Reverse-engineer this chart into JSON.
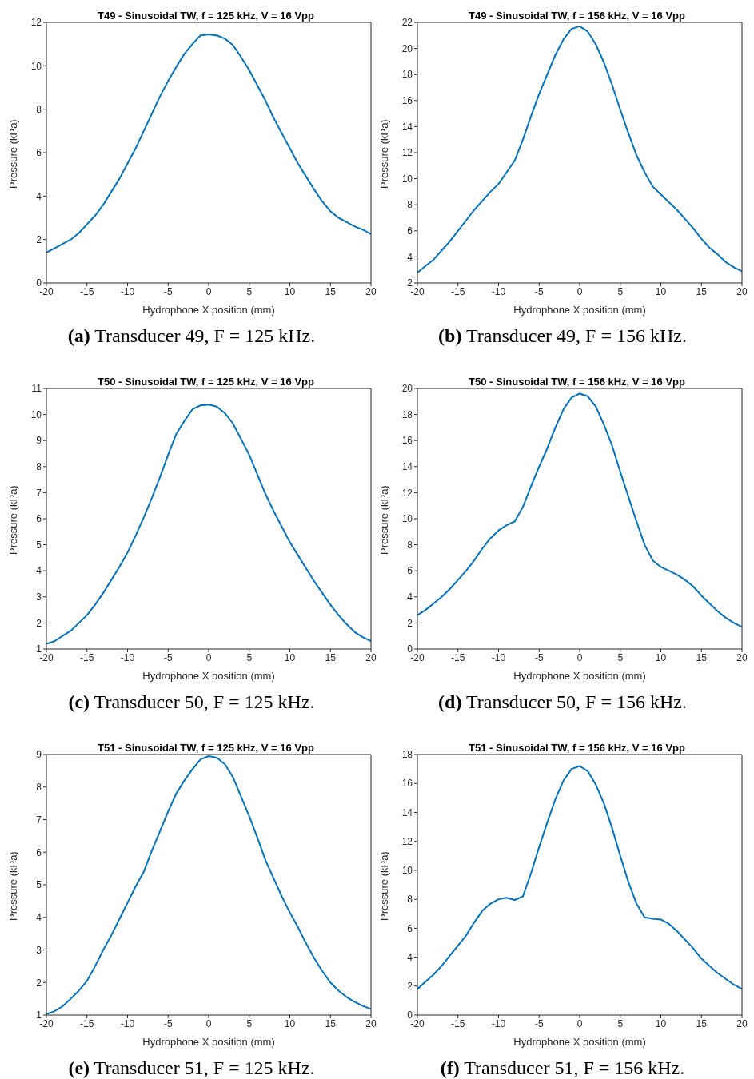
{
  "chart_data": [
    {
      "type": "line",
      "title": "T49 - Sinusoidal TW, f = 125 kHz, V = 16 Vpp",
      "xlabel": "Hydrophone X position (mm)",
      "ylabel": "Pressure (kPa)",
      "annotations": [
        "(a) Transducer 49, F = 125 kHz."
      ],
      "color": "#0072bd",
      "xlim": [
        -20,
        20
      ],
      "xticks": [
        -20,
        -15,
        -10,
        -5,
        0,
        5,
        10,
        15,
        20
      ],
      "ylim": [
        0,
        12
      ],
      "yticks": [
        0,
        2,
        4,
        6,
        8,
        10,
        12
      ],
      "x": [
        -20,
        -19,
        -18,
        -17,
        -16,
        -15,
        -14,
        -13,
        -12,
        -11,
        -10,
        -9,
        -8,
        -7,
        -6,
        -5,
        -4,
        -3,
        -2,
        -1,
        0,
        1,
        2,
        3,
        4,
        5,
        6,
        7,
        8,
        9,
        10,
        11,
        12,
        13,
        14,
        15,
        16,
        17,
        18,
        19,
        20
      ],
      "values": [
        1.4,
        1.6,
        1.8,
        2.0,
        2.3,
        2.7,
        3.1,
        3.6,
        4.2,
        4.8,
        5.5,
        6.2,
        7.0,
        7.8,
        8.6,
        9.3,
        9.95,
        10.55,
        11.0,
        11.4,
        11.45,
        11.4,
        11.25,
        10.95,
        10.4,
        9.8,
        9.1,
        8.4,
        7.6,
        6.9,
        6.2,
        5.5,
        4.9,
        4.3,
        3.75,
        3.3,
        3.0,
        2.8,
        2.6,
        2.45,
        2.25
      ]
    },
    {
      "type": "line",
      "title": "T49 - Sinusoidal TW, f = 156 kHz, V = 16 Vpp",
      "xlabel": "Hydrophone X position (mm)",
      "ylabel": "Pressure (kPa)",
      "annotations": [
        "(b) Transducer 49, F = 156 kHz."
      ],
      "color": "#0072bd",
      "xlim": [
        -20,
        20
      ],
      "xticks": [
        -20,
        -15,
        -10,
        -5,
        0,
        5,
        10,
        15,
        20
      ],
      "ylim": [
        2,
        22
      ],
      "yticks": [
        2,
        4,
        6,
        8,
        10,
        12,
        14,
        16,
        18,
        20,
        22
      ],
      "x": [
        -20,
        -19,
        -18,
        -17,
        -16,
        -15,
        -14,
        -13,
        -12,
        -11,
        -10,
        -9,
        -8,
        -7,
        -6,
        -5,
        -4,
        -3,
        -2,
        -1,
        0,
        1,
        2,
        3,
        4,
        5,
        6,
        7,
        8,
        9,
        10,
        11,
        12,
        13,
        14,
        15,
        16,
        17,
        18,
        19,
        20
      ],
      "values": [
        2.8,
        3.3,
        3.8,
        4.5,
        5.2,
        6.0,
        6.8,
        7.6,
        8.3,
        9.0,
        9.6,
        10.5,
        11.4,
        13.0,
        14.8,
        16.5,
        18.0,
        19.5,
        20.7,
        21.5,
        21.7,
        21.3,
        20.3,
        18.9,
        17.2,
        15.3,
        13.5,
        11.8,
        10.5,
        9.4,
        8.8,
        8.2,
        7.6,
        6.9,
        6.2,
        5.4,
        4.7,
        4.2,
        3.6,
        3.2,
        2.9
      ]
    },
    {
      "type": "line",
      "title": "T50 - Sinusoidal TW, f = 125 kHz, V = 16 Vpp",
      "xlabel": "Hydrophone X position (mm)",
      "ylabel": "Pressure (kPa)",
      "annotations": [
        "(c) Transducer 50, F = 125 kHz."
      ],
      "color": "#0072bd",
      "xlim": [
        -20,
        20
      ],
      "xticks": [
        -20,
        -15,
        -10,
        -5,
        0,
        5,
        10,
        15,
        20
      ],
      "ylim": [
        1,
        11
      ],
      "yticks": [
        1,
        2,
        3,
        4,
        5,
        6,
        7,
        8,
        9,
        10,
        11
      ],
      "x": [
        -20,
        -19,
        -18,
        -17,
        -16,
        -15,
        -14,
        -13,
        -12,
        -11,
        -10,
        -9,
        -8,
        -7,
        -6,
        -5,
        -4,
        -3,
        -2,
        -1,
        0,
        1,
        2,
        3,
        4,
        5,
        6,
        7,
        8,
        9,
        10,
        11,
        12,
        13,
        14,
        15,
        16,
        17,
        18,
        19,
        20
      ],
      "values": [
        1.2,
        1.3,
        1.5,
        1.7,
        2.0,
        2.3,
        2.7,
        3.15,
        3.65,
        4.15,
        4.7,
        5.35,
        6.05,
        6.8,
        7.6,
        8.45,
        9.25,
        9.75,
        10.2,
        10.35,
        10.38,
        10.3,
        10.05,
        9.65,
        9.05,
        8.45,
        7.7,
        6.95,
        6.3,
        5.7,
        5.1,
        4.6,
        4.1,
        3.6,
        3.15,
        2.7,
        2.3,
        1.95,
        1.65,
        1.45,
        1.3
      ]
    },
    {
      "type": "line",
      "title": "T50 - Sinusoidal TW, f = 156 kHz, V = 16 Vpp",
      "xlabel": "Hydrophone X position (mm)",
      "ylabel": "Pressure (kPa)",
      "annotations": [
        "(d) Transducer 50, F = 156 kHz."
      ],
      "color": "#0072bd",
      "xlim": [
        -20,
        20
      ],
      "xticks": [
        -20,
        -15,
        -10,
        -5,
        0,
        5,
        10,
        15,
        20
      ],
      "ylim": [
        0,
        20
      ],
      "yticks": [
        0,
        2,
        4,
        6,
        8,
        10,
        12,
        14,
        16,
        18,
        20
      ],
      "x": [
        -20,
        -19,
        -18,
        -17,
        -16,
        -15,
        -14,
        -13,
        -12,
        -11,
        -10,
        -9,
        -8,
        -7,
        -6,
        -5,
        -4,
        -3,
        -2,
        -1,
        0,
        1,
        2,
        3,
        4,
        5,
        6,
        7,
        8,
        9,
        10,
        11,
        12,
        13,
        14,
        15,
        16,
        17,
        18,
        19,
        20
      ],
      "values": [
        2.6,
        3.0,
        3.5,
        4.0,
        4.6,
        5.3,
        6.0,
        6.8,
        7.7,
        8.5,
        9.1,
        9.5,
        9.8,
        10.9,
        12.5,
        14.0,
        15.4,
        17.0,
        18.4,
        19.3,
        19.6,
        19.4,
        18.6,
        17.2,
        15.6,
        13.6,
        11.7,
        9.8,
        8.0,
        6.8,
        6.3,
        6.0,
        5.7,
        5.3,
        4.8,
        4.1,
        3.5,
        2.9,
        2.4,
        2.0,
        1.7
      ]
    },
    {
      "type": "line",
      "title": "T51 - Sinusoidal TW, f = 125 kHz, V = 16 Vpp",
      "xlabel": "Hydrophone X position (mm)",
      "ylabel": "Pressure (kPa)",
      "annotations": [
        "(e) Transducer 51, F = 125 kHz."
      ],
      "color": "#0072bd",
      "xlim": [
        -20,
        20
      ],
      "xticks": [
        -20,
        -15,
        -10,
        -5,
        0,
        5,
        10,
        15,
        20
      ],
      "ylim": [
        1,
        9
      ],
      "yticks": [
        1,
        2,
        3,
        4,
        5,
        6,
        7,
        8,
        9
      ],
      "x": [
        -20,
        -19,
        -18,
        -17,
        -16,
        -15,
        -14,
        -13,
        -12,
        -11,
        -10,
        -9,
        -8,
        -7,
        -6,
        -5,
        -4,
        -3,
        -2,
        -1,
        0,
        1,
        2,
        3,
        4,
        5,
        6,
        7,
        8,
        9,
        10,
        11,
        12,
        13,
        14,
        15,
        16,
        17,
        18,
        19,
        20
      ],
      "values": [
        1.03,
        1.12,
        1.27,
        1.5,
        1.75,
        2.05,
        2.5,
        3.0,
        3.45,
        3.95,
        4.45,
        4.95,
        5.4,
        6.05,
        6.65,
        7.25,
        7.8,
        8.2,
        8.55,
        8.85,
        8.95,
        8.9,
        8.7,
        8.3,
        7.7,
        7.1,
        6.45,
        5.75,
        5.2,
        4.65,
        4.15,
        3.7,
        3.2,
        2.75,
        2.35,
        2.0,
        1.75,
        1.55,
        1.4,
        1.28,
        1.18
      ]
    },
    {
      "type": "line",
      "title": "T51 - Sinusoidal TW, f = 156 kHz, V = 16 Vpp",
      "xlabel": "Hydrophone X position (mm)",
      "ylabel": "Pressure (kPa)",
      "annotations": [
        "(f) Transducer 51, F = 156 kHz."
      ],
      "color": "#0072bd",
      "xlim": [
        -20,
        20
      ],
      "xticks": [
        -20,
        -15,
        -10,
        -5,
        0,
        5,
        10,
        15,
        20
      ],
      "ylim": [
        0,
        18
      ],
      "yticks": [
        0,
        2,
        4,
        6,
        8,
        10,
        12,
        14,
        16,
        18
      ],
      "x": [
        -20,
        -19,
        -18,
        -17,
        -16,
        -15,
        -14,
        -13,
        -12,
        -11,
        -10,
        -9,
        -8,
        -7,
        -6,
        -5,
        -4,
        -3,
        -2,
        -1,
        0,
        1,
        2,
        3,
        4,
        5,
        6,
        7,
        8,
        9,
        10,
        11,
        12,
        13,
        14,
        15,
        16,
        17,
        18,
        19,
        20
      ],
      "values": [
        1.8,
        2.3,
        2.8,
        3.4,
        4.1,
        4.8,
        5.5,
        6.4,
        7.2,
        7.7,
        8.0,
        8.1,
        7.95,
        8.2,
        9.8,
        11.6,
        13.3,
        14.9,
        16.2,
        17.0,
        17.2,
        16.85,
        15.9,
        14.6,
        12.9,
        11.0,
        9.2,
        7.7,
        6.75,
        6.65,
        6.6,
        6.3,
        5.8,
        5.2,
        4.6,
        3.9,
        3.4,
        2.9,
        2.5,
        2.1,
        1.8
      ]
    }
  ]
}
